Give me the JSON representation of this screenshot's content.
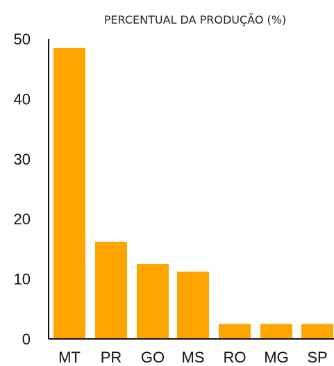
{
  "chart_data": {
    "type": "bar",
    "title": "PERCENTUAL DA PRODUÇÃO (%)",
    "xlabel": "",
    "ylabel": "",
    "categories": [
      "MT",
      "PR",
      "GO",
      "MS",
      "RO",
      "MG",
      "SP"
    ],
    "values": [
      48.5,
      16.2,
      12.5,
      11.2,
      2.5,
      2.5,
      2.5
    ],
    "ylim": [
      0,
      50
    ],
    "yticks": [
      "0",
      "10",
      "20",
      "30",
      "40",
      "50"
    ],
    "grid": false,
    "bar_color": "#FFA500",
    "axis_color": "#111111"
  }
}
